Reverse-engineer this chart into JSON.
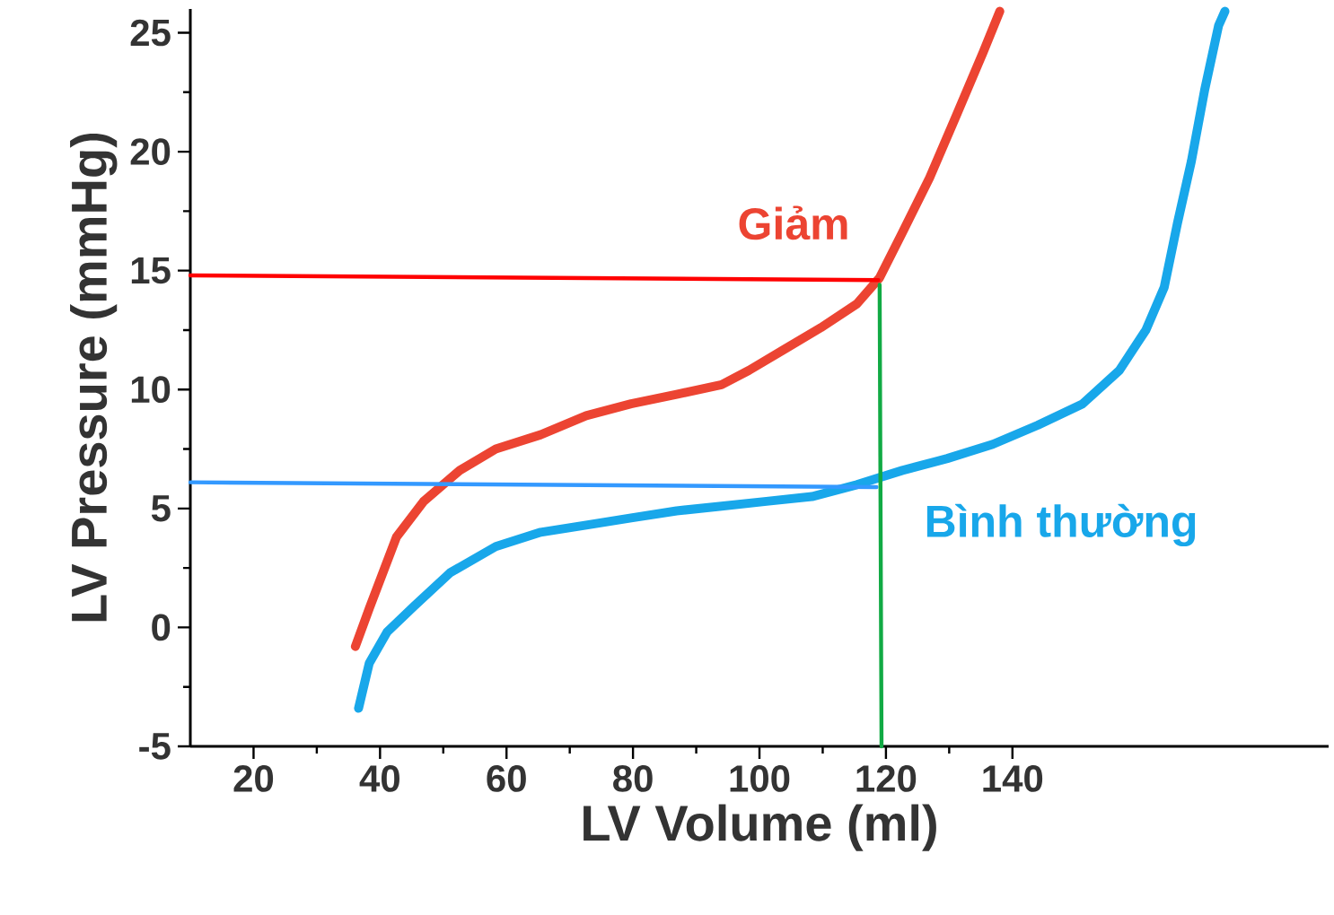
{
  "chart_data": {
    "type": "line",
    "xlabel": "LV Volume (ml)",
    "ylabel": "LV Pressure (mmHg)",
    "xlim": [
      10,
      190
    ],
    "ylim": [
      -5,
      26
    ],
    "xticks": [
      20,
      40,
      60,
      80,
      100,
      120,
      140
    ],
    "yticks": [
      -5,
      0,
      5,
      10,
      15,
      20,
      25
    ],
    "series": [
      {
        "name": "Giảm",
        "color": "#ec4432",
        "x": [
          36.1,
          38.3,
          42.6,
          46.9,
          52.6,
          58.3,
          65.4,
          72.6,
          79.7,
          86.9,
          94,
          98.3,
          104,
          109.7,
          115.4,
          119,
          122.6,
          126.9,
          131.1,
          135.4,
          138
        ],
        "values": [
          -0.8,
          0.8,
          3.8,
          5.3,
          6.6,
          7.5,
          8.1,
          8.9,
          9.4,
          9.8,
          10.2,
          10.8,
          11.7,
          12.6,
          13.6,
          14.7,
          16.6,
          18.9,
          21.5,
          24.2,
          25.9
        ]
      },
      {
        "name": "Bình thường",
        "color": "#18a7ea",
        "x": [
          36.6,
          38.3,
          41.1,
          45.4,
          51.1,
          58.3,
          65.4,
          72.6,
          79.7,
          86.9,
          94,
          101.1,
          108.3,
          115.4,
          122.6,
          129.7,
          136.9,
          144,
          151.1,
          156.9,
          161.1,
          164,
          166.1,
          168.3,
          170.4,
          172.6,
          173.6
        ],
        "values": [
          -3.4,
          -1.5,
          -0.2,
          0.9,
          2.3,
          3.4,
          4.0,
          4.3,
          4.6,
          4.9,
          5.1,
          5.3,
          5.5,
          6.0,
          6.6,
          7.1,
          7.7,
          8.5,
          9.4,
          10.8,
          12.5,
          14.3,
          17.0,
          19.6,
          22.6,
          25.3,
          25.9
        ]
      },
      {
        "color": "#ff0000",
        "x": [
          10,
          118.8
        ],
        "values": [
          14.8,
          14.6
        ]
      },
      {
        "color": "#3399ff",
        "x": [
          10,
          118.5
        ],
        "values": [
          6.1,
          5.9
        ]
      },
      {
        "color": "#11aa44",
        "x": [
          119.0,
          119.3
        ],
        "values": [
          14.4,
          -5
        ]
      }
    ]
  }
}
